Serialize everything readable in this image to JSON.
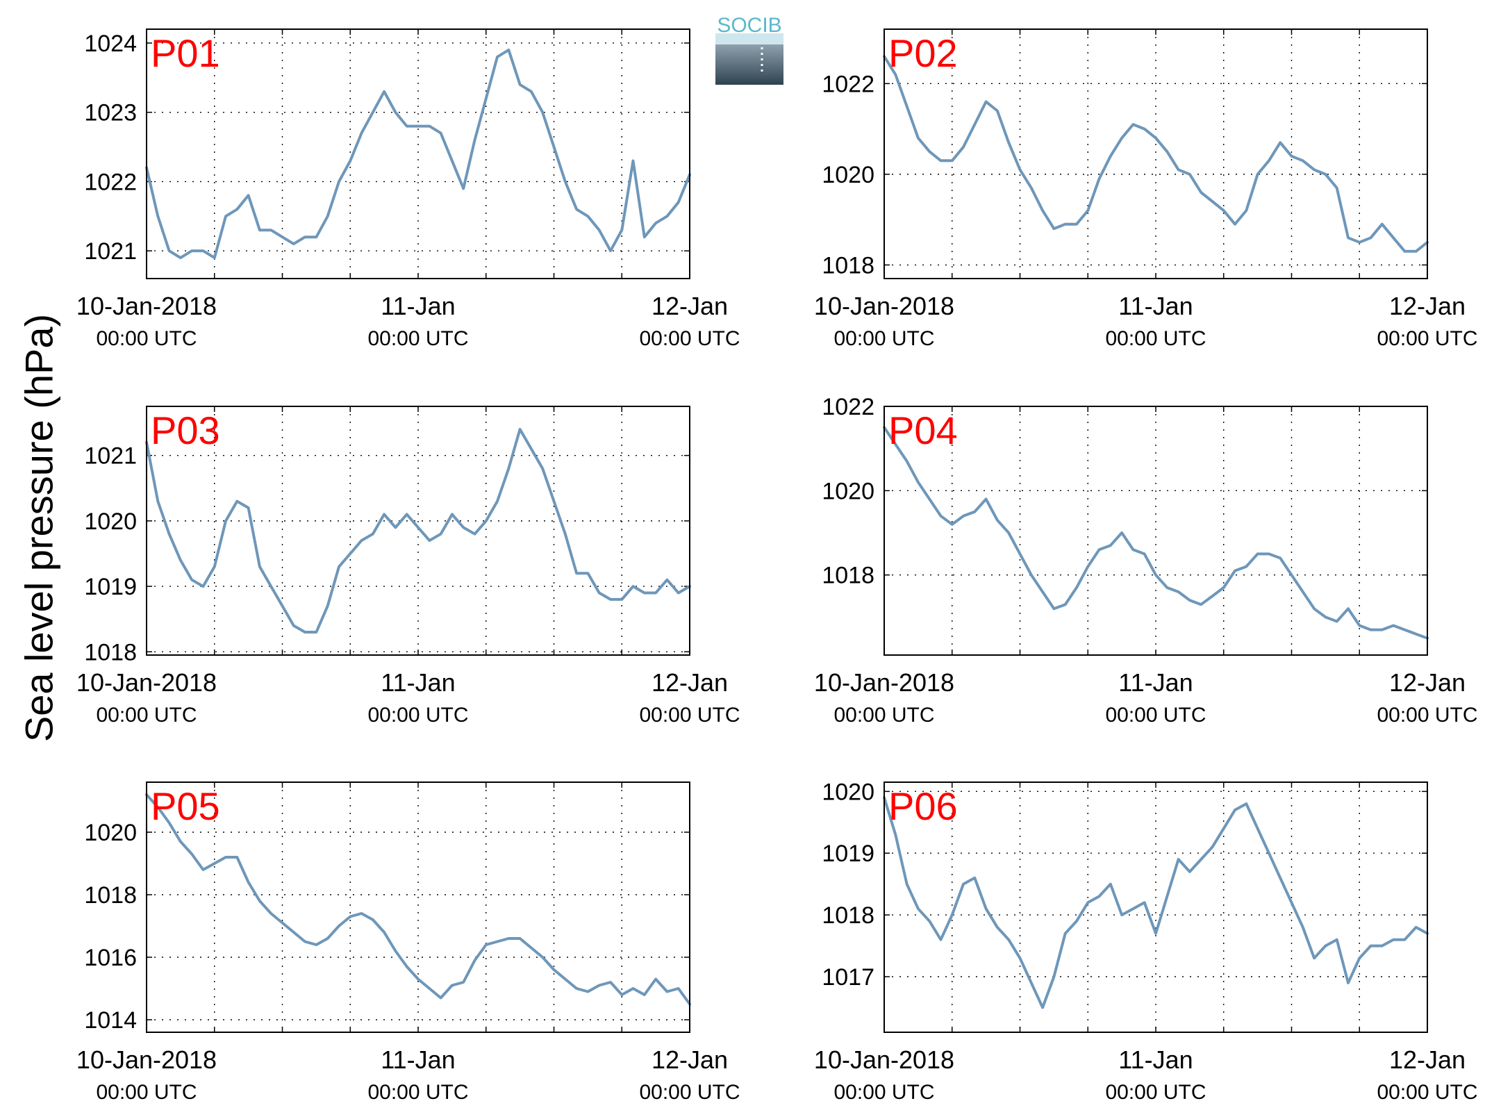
{
  "figure": {
    "ylabel": "Sea level pressure (hPa)",
    "logo_text": "SOCIB",
    "colors": {
      "line": "#6e97b9",
      "panel_label": "#ff0000",
      "axis": "#000000",
      "logo_text": "#5ab7cc"
    }
  },
  "chart_data": [
    {
      "type": "line",
      "panel_label": "P01",
      "xlim": [
        "10-Jan-2018 00:00 UTC",
        "12-Jan-2018 00:00 UTC"
      ],
      "xticks": [
        [
          "10-Jan-2018",
          "00:00 UTC"
        ],
        [
          "11-Jan",
          "00:00 UTC"
        ],
        [
          "12-Jan",
          "00:00 UTC"
        ]
      ],
      "ylim": [
        1020.6,
        1024.2
      ],
      "yticks": [
        1021,
        1022,
        1023,
        1024
      ],
      "x_hours": [
        0,
        1,
        2,
        3,
        4,
        5,
        6,
        7,
        8,
        9,
        10,
        11,
        12,
        13,
        14,
        15,
        16,
        17,
        18,
        19,
        20,
        21,
        22,
        23,
        24,
        25,
        26,
        27,
        28,
        29,
        30,
        31,
        32,
        33,
        34,
        35,
        36,
        37,
        38,
        39,
        40,
        41,
        42,
        43,
        44,
        45,
        46,
        47,
        48
      ],
      "values": [
        1022.2,
        1021.5,
        1021.0,
        1020.9,
        1021.0,
        1021.0,
        1020.9,
        1021.5,
        1021.6,
        1021.8,
        1021.3,
        1021.3,
        1021.2,
        1021.1,
        1021.2,
        1021.2,
        1021.5,
        1022.0,
        1022.3,
        1022.7,
        1023.0,
        1023.3,
        1023.0,
        1022.8,
        1022.8,
        1022.8,
        1022.7,
        1022.3,
        1021.9,
        1022.6,
        1023.2,
        1023.8,
        1023.9,
        1023.4,
        1023.3,
        1023.0,
        1022.5,
        1022.0,
        1021.6,
        1021.5,
        1021.3,
        1021.0,
        1021.3,
        1022.3,
        1021.2,
        1021.4,
        1021.5,
        1021.7,
        1022.1
      ]
    },
    {
      "type": "line",
      "panel_label": "P02",
      "xlim": [
        "10-Jan-2018 00:00 UTC",
        "12-Jan-2018 00:00 UTC"
      ],
      "xticks": [
        [
          "10-Jan-2018",
          "00:00 UTC"
        ],
        [
          "11-Jan",
          "00:00 UTC"
        ],
        [
          "12-Jan",
          "00:00 UTC"
        ]
      ],
      "ylim": [
        1017.7,
        1023.2
      ],
      "yticks": [
        1018,
        1020,
        1022
      ],
      "x_hours": [
        0,
        1,
        2,
        3,
        4,
        5,
        6,
        7,
        8,
        9,
        10,
        11,
        12,
        13,
        14,
        15,
        16,
        17,
        18,
        19,
        20,
        21,
        22,
        23,
        24,
        25,
        26,
        27,
        28,
        29,
        30,
        31,
        32,
        33,
        34,
        35,
        36,
        37,
        38,
        39,
        40,
        41,
        42,
        43,
        44,
        45,
        46,
        47,
        48
      ],
      "values": [
        1022.6,
        1022.2,
        1021.5,
        1020.8,
        1020.5,
        1020.3,
        1020.3,
        1020.6,
        1021.1,
        1021.6,
        1021.4,
        1020.7,
        1020.1,
        1019.7,
        1019.2,
        1018.8,
        1018.9,
        1018.9,
        1019.2,
        1019.9,
        1020.4,
        1020.8,
        1021.1,
        1021.0,
        1020.8,
        1020.5,
        1020.1,
        1020.0,
        1019.6,
        1019.4,
        1019.2,
        1018.9,
        1019.2,
        1020.0,
        1020.3,
        1020.7,
        1020.4,
        1020.3,
        1020.1,
        1020.0,
        1019.7,
        1018.6,
        1018.5,
        1018.6,
        1018.9,
        1018.6,
        1018.3,
        1018.3,
        1018.5
      ]
    },
    {
      "type": "line",
      "panel_label": "P03",
      "xlim": [
        "10-Jan-2018 00:00 UTC",
        "12-Jan-2018 00:00 UTC"
      ],
      "xticks": [
        [
          "10-Jan-2018",
          "00:00 UTC"
        ],
        [
          "11-Jan",
          "00:00 UTC"
        ],
        [
          "12-Jan",
          "00:00 UTC"
        ]
      ],
      "ylim": [
        1017.95,
        1021.75
      ],
      "yticks": [
        1018,
        1019,
        1020,
        1021
      ],
      "x_hours": [
        0,
        1,
        2,
        3,
        4,
        5,
        6,
        7,
        8,
        9,
        10,
        11,
        12,
        13,
        14,
        15,
        16,
        17,
        18,
        19,
        20,
        21,
        22,
        23,
        24,
        25,
        26,
        27,
        28,
        29,
        30,
        31,
        32,
        33,
        34,
        35,
        36,
        37,
        38,
        39,
        40,
        41,
        42,
        43,
        44,
        45,
        46,
        47,
        48
      ],
      "values": [
        1021.2,
        1020.3,
        1019.8,
        1019.4,
        1019.1,
        1019.0,
        1019.3,
        1020.0,
        1020.3,
        1020.2,
        1019.3,
        1019.0,
        1018.7,
        1018.4,
        1018.3,
        1018.3,
        1018.7,
        1019.3,
        1019.5,
        1019.7,
        1019.8,
        1020.1,
        1019.9,
        1020.1,
        1019.9,
        1019.7,
        1019.8,
        1020.1,
        1019.9,
        1019.8,
        1020.0,
        1020.3,
        1020.8,
        1021.4,
        1021.1,
        1020.8,
        1020.3,
        1019.8,
        1019.2,
        1019.2,
        1018.9,
        1018.8,
        1018.8,
        1019.0,
        1018.9,
        1018.9,
        1019.1,
        1018.9,
        1019.0
      ]
    },
    {
      "type": "line",
      "panel_label": "P04",
      "xlim": [
        "10-Jan-2018 00:00 UTC",
        "12-Jan-2018 00:00 UTC"
      ],
      "xticks": [
        [
          "10-Jan-2018",
          "00:00 UTC"
        ],
        [
          "11-Jan",
          "00:00 UTC"
        ],
        [
          "12-Jan",
          "00:00 UTC"
        ]
      ],
      "ylim": [
        1016.1,
        1022.0
      ],
      "yticks": [
        1018,
        1020,
        1022
      ],
      "x_hours": [
        0,
        1,
        2,
        3,
        4,
        5,
        6,
        7,
        8,
        9,
        10,
        11,
        12,
        13,
        14,
        15,
        16,
        17,
        18,
        19,
        20,
        21,
        22,
        23,
        24,
        25,
        26,
        27,
        28,
        29,
        30,
        31,
        32,
        33,
        34,
        35,
        36,
        37,
        38,
        39,
        40,
        41,
        42,
        43,
        44,
        45,
        46,
        47,
        48
      ],
      "values": [
        1021.5,
        1021.1,
        1020.7,
        1020.2,
        1019.8,
        1019.4,
        1019.2,
        1019.4,
        1019.5,
        1019.8,
        1019.3,
        1019.0,
        1018.5,
        1018.0,
        1017.6,
        1017.2,
        1017.3,
        1017.7,
        1018.2,
        1018.6,
        1018.7,
        1019.0,
        1018.6,
        1018.5,
        1018.0,
        1017.7,
        1017.6,
        1017.4,
        1017.3,
        1017.5,
        1017.7,
        1018.1,
        1018.2,
        1018.5,
        1018.5,
        1018.4,
        1018.0,
        1017.6,
        1017.2,
        1017.0,
        1016.9,
        1017.2,
        1016.8,
        1016.7,
        1016.7,
        1016.8,
        1016.7,
        1016.6,
        1016.5
      ]
    },
    {
      "type": "line",
      "panel_label": "P05",
      "xlim": [
        "10-Jan-2018 00:00 UTC",
        "12-Jan-2018 00:00 UTC"
      ],
      "xticks": [
        [
          "10-Jan-2018",
          "00:00 UTC"
        ],
        [
          "11-Jan",
          "00:00 UTC"
        ],
        [
          "12-Jan",
          "00:00 UTC"
        ]
      ],
      "ylim": [
        1013.6,
        1021.6
      ],
      "yticks": [
        1014,
        1016,
        1018,
        1020
      ],
      "x_hours": [
        0,
        1,
        2,
        3,
        4,
        5,
        6,
        7,
        8,
        9,
        10,
        11,
        12,
        13,
        14,
        15,
        16,
        17,
        18,
        19,
        20,
        21,
        22,
        23,
        24,
        25,
        26,
        27,
        28,
        29,
        30,
        31,
        32,
        33,
        34,
        35,
        36,
        37,
        38,
        39,
        40,
        41,
        42,
        43,
        44,
        45,
        46,
        47,
        48
      ],
      "values": [
        1021.2,
        1020.8,
        1020.3,
        1019.7,
        1019.3,
        1018.8,
        1019.0,
        1019.2,
        1019.2,
        1018.4,
        1017.8,
        1017.4,
        1017.1,
        1016.8,
        1016.5,
        1016.4,
        1016.6,
        1017.0,
        1017.3,
        1017.4,
        1017.2,
        1016.8,
        1016.2,
        1015.7,
        1015.3,
        1015.0,
        1014.7,
        1015.1,
        1015.2,
        1015.9,
        1016.4,
        1016.5,
        1016.6,
        1016.6,
        1016.3,
        1016.0,
        1015.6,
        1015.3,
        1015.0,
        1014.9,
        1015.1,
        1015.2,
        1014.8,
        1015.0,
        1014.8,
        1015.3,
        1014.9,
        1015.0,
        1014.5
      ]
    },
    {
      "type": "line",
      "panel_label": "P06",
      "xlim": [
        "10-Jan-2018 00:00 UTC",
        "12-Jan-2018 00:00 UTC"
      ],
      "xticks": [
        [
          "10-Jan-2018",
          "00:00 UTC"
        ],
        [
          "11-Jan",
          "00:00 UTC"
        ],
        [
          "12-Jan",
          "00:00 UTC"
        ]
      ],
      "ylim": [
        1016.1,
        1020.15
      ],
      "yticks": [
        1017,
        1018,
        1019,
        1020
      ],
      "x_hours": [
        0,
        1,
        2,
        3,
        4,
        5,
        6,
        7,
        8,
        9,
        10,
        11,
        12,
        13,
        14,
        15,
        16,
        17,
        18,
        19,
        20,
        21,
        22,
        23,
        24,
        25,
        26,
        27,
        28,
        29,
        30,
        31,
        32,
        33,
        34,
        35,
        36,
        37,
        38,
        39,
        40,
        41,
        42,
        43,
        44,
        45,
        46,
        47,
        48
      ],
      "values": [
        1019.9,
        1019.3,
        1018.5,
        1018.1,
        1017.9,
        1017.6,
        1018.0,
        1018.5,
        1018.6,
        1018.1,
        1017.8,
        1017.6,
        1017.3,
        1016.9,
        1016.5,
        1017.0,
        1017.7,
        1017.9,
        1018.2,
        1018.3,
        1018.5,
        1018.0,
        1018.1,
        1018.2,
        1017.7,
        1018.3,
        1018.9,
        1018.7,
        1018.9,
        1019.1,
        1019.4,
        1019.7,
        1019.8,
        1019.4,
        1019.0,
        1018.6,
        1018.2,
        1017.8,
        1017.3,
        1017.5,
        1017.6,
        1016.9,
        1017.3,
        1017.5,
        1017.5,
        1017.6,
        1017.6,
        1017.8,
        1017.7
      ]
    }
  ]
}
